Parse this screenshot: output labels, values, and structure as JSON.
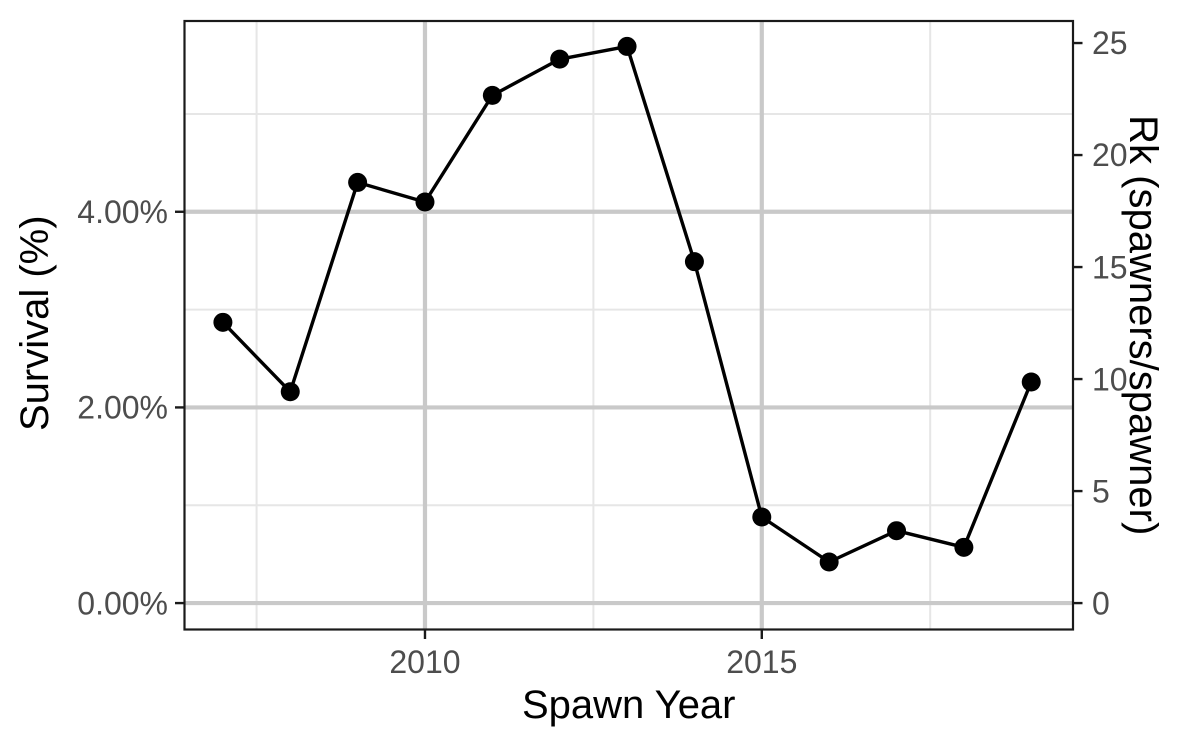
{
  "figure": {
    "background": "#ffffff",
    "line_color": "#000000",
    "point_color": "#000000",
    "grid_major_color": "#c9c9c9",
    "grid_minor_color": "#e6e6e6",
    "panel_border_color": "#1a1a1a",
    "tick_mark_color": "#1a1a1a",
    "tick_label_color": "#4d4d4d",
    "axis_title_color": "#000000"
  },
  "chart_data": {
    "type": "line",
    "title": "",
    "xlabel": "Spawn Year",
    "ylabel_left": "Survival (%)",
    "ylabel_right": "Rk (spawners/spawner)",
    "x": [
      2007,
      2008,
      2009,
      2010,
      2011,
      2012,
      2013,
      2014,
      2015,
      2016,
      2017,
      2018,
      2019
    ],
    "series": [
      {
        "name": "Survival (%)",
        "axis": "left",
        "values": [
          2.87,
          2.16,
          4.3,
          4.1,
          5.19,
          5.56,
          5.69,
          3.49,
          0.88,
          0.42,
          0.74,
          0.57,
          2.26
        ]
      },
      {
        "name": "Rk (spawners/spawner)",
        "axis": "right",
        "values": [
          12.5,
          9.4,
          18.8,
          17.9,
          22.7,
          24.3,
          24.8,
          15.2,
          3.8,
          1.8,
          3.2,
          2.5,
          9.9
        ]
      }
    ],
    "x_ticks": {
      "values": [
        2010,
        2015
      ],
      "labels": [
        "2010",
        "2015"
      ]
    },
    "x_minor": [
      2007.5,
      2012.5,
      2017.5
    ],
    "y_left_ticks": {
      "values": [
        0,
        2,
        4
      ],
      "labels": [
        "0.00%",
        "2.00%",
        "4.00%"
      ]
    },
    "y_left_minor": [
      1,
      3,
      5
    ],
    "y_right_ticks": {
      "values": [
        0,
        5,
        10,
        15,
        20,
        25
      ],
      "labels": [
        "0",
        "5",
        "10",
        "15",
        "20",
        "25"
      ]
    },
    "x_domain": [
      2006.43,
      2019.62
    ],
    "y_left_domain": [
      -0.27,
      5.95
    ],
    "rk_per_percent": 4.367,
    "grid": true,
    "legend": "none",
    "marker": "filled-circle"
  }
}
